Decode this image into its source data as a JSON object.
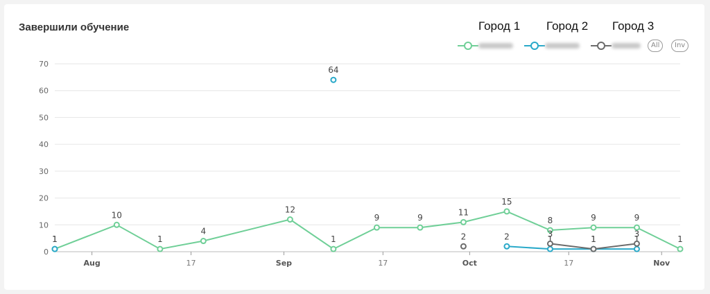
{
  "title": "Завершили обучение",
  "cities": [
    "Город 1",
    "Город 2",
    "Город 3"
  ],
  "legend": {
    "all_label": "All",
    "inv_label": "Inv"
  },
  "colors": {
    "series1": "#6fcf97",
    "series2": "#29a9c9",
    "series3": "#6b6b6b",
    "grid": "#e6e6e6",
    "axis": "#999999"
  },
  "chart_data": {
    "type": "line",
    "title": "Завершили обучение",
    "ylim": [
      0,
      70
    ],
    "yticks": [
      0,
      10,
      20,
      30,
      40,
      50,
      60,
      70
    ],
    "xticks": [
      {
        "date": "2023-08-01",
        "label": "Aug",
        "bold": true
      },
      {
        "date": "2023-08-17",
        "label": "17",
        "bold": false
      },
      {
        "date": "2023-09-01",
        "label": "Sep",
        "bold": true
      },
      {
        "date": "2023-09-17",
        "label": "17",
        "bold": false
      },
      {
        "date": "2023-10-01",
        "label": "Oct",
        "bold": true
      },
      {
        "date": "2023-10-17",
        "label": "17",
        "bold": false
      },
      {
        "date": "2023-11-01",
        "label": "Nov",
        "bold": true
      }
    ],
    "xlim": [
      "2023-07-26",
      "2023-11-01"
    ],
    "series": [
      {
        "name": "Город 1",
        "color": "#6fcf97",
        "points": [
          {
            "x": "2023-07-26",
            "y": 1
          },
          {
            "x": "2023-08-05",
            "y": 10
          },
          {
            "x": "2023-08-12",
            "y": 1
          },
          {
            "x": "2023-08-19",
            "y": 4
          },
          {
            "x": "2023-09-02",
            "y": 12
          },
          {
            "x": "2023-09-09",
            "y": 1
          },
          {
            "x": "2023-09-16",
            "y": 9
          },
          {
            "x": "2023-09-23",
            "y": 9
          },
          {
            "x": "2023-09-30",
            "y": 11
          },
          {
            "x": "2023-10-07",
            "y": 15
          },
          {
            "x": "2023-10-14",
            "y": 8
          },
          {
            "x": "2023-10-21",
            "y": 9
          },
          {
            "x": "2023-10-28",
            "y": 9
          },
          {
            "x": "2023-11-04",
            "y": 1
          }
        ]
      },
      {
        "name": "Город 2",
        "color": "#29a9c9",
        "points": [
          {
            "x": "2023-07-26",
            "y": 1
          },
          {
            "x": "2023-09-09",
            "y": 64
          },
          {
            "x": "2023-10-07",
            "y": 2
          },
          {
            "x": "2023-10-14",
            "y": 1
          },
          {
            "x": "2023-10-21",
            "y": 1
          },
          {
            "x": "2023-10-28",
            "y": 1
          }
        ],
        "segments": [
          [
            2,
            5
          ]
        ]
      },
      {
        "name": "Город 3",
        "color": "#6b6b6b",
        "points": [
          {
            "x": "2023-09-30",
            "y": 2
          },
          {
            "x": "2023-10-14",
            "y": 3
          },
          {
            "x": "2023-10-21",
            "y": 1
          },
          {
            "x": "2023-10-28",
            "y": 3
          }
        ],
        "segments": [
          [
            1,
            3
          ]
        ]
      }
    ]
  }
}
